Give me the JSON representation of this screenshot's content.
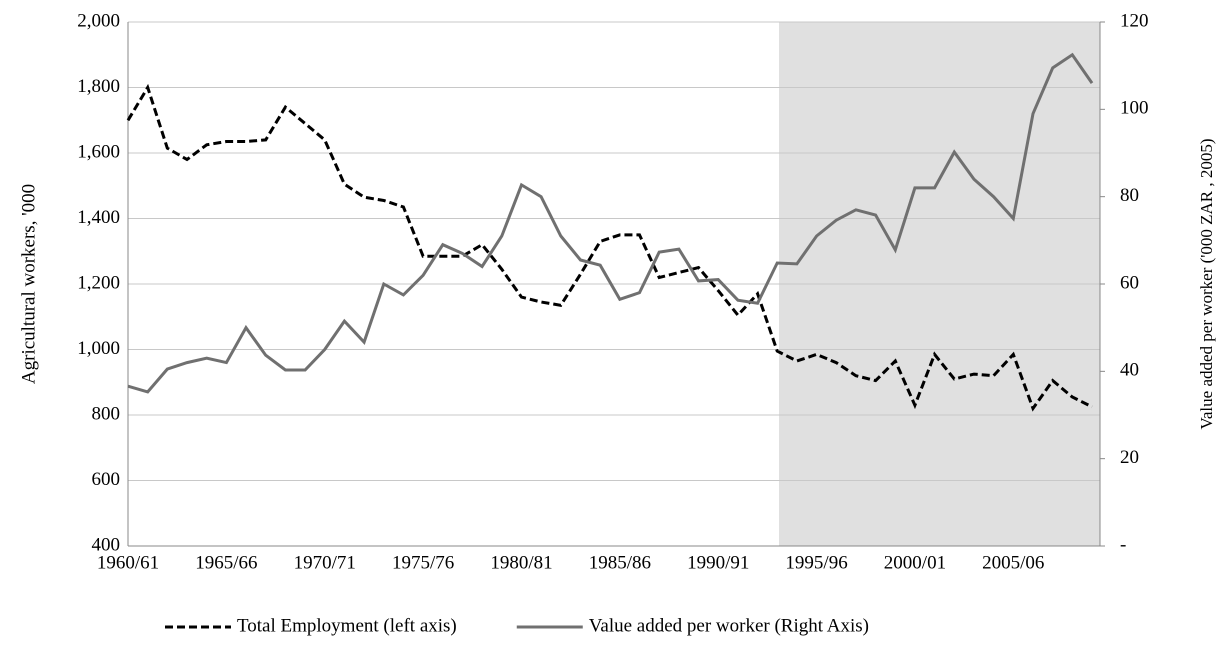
{
  "chart_data": {
    "type": "line",
    "y_label": "Agricultural workers, '000",
    "y2_label": "Value added per worker ('000 ZAR , 2005)",
    "categories": [
      "1960/61",
      null,
      null,
      null,
      null,
      "1965/66",
      null,
      null,
      null,
      null,
      "1970/71",
      null,
      null,
      null,
      null,
      "1975/76",
      null,
      null,
      null,
      null,
      "1980/81",
      null,
      null,
      null,
      null,
      "1985/86",
      null,
      null,
      null,
      null,
      "1990/91",
      null,
      null,
      null,
      null,
      "1995/96",
      null,
      null,
      null,
      null,
      "2000/01",
      null,
      null,
      null,
      null,
      "2005/06",
      null,
      null,
      null,
      null
    ],
    "series": [
      {
        "name": "Total Employment (left axis)",
        "color": "#000000",
        "line_style": "dashed",
        "values": [
          1700,
          1800,
          1615,
          1580,
          1625,
          1635,
          1635,
          1640,
          1740,
          1690,
          1640,
          1505,
          1465,
          1455,
          1435,
          1285,
          1285,
          1285,
          1320,
          1245,
          1160,
          1145,
          1135,
          1230,
          1330,
          1350,
          1350,
          1220,
          1235,
          1250,
          1180,
          1105,
          1170,
          995,
          965,
          985,
          960,
          920,
          905,
          965,
          830,
          985,
          910,
          925,
          920,
          985,
          820,
          905,
          855,
          825
        ]
      },
      {
        "name": "Value added per worker (Right Axis)",
        "color": "#707070",
        "line_style": "solid",
        "axis": "y2",
        "values": [
          36.6,
          35.3,
          40.5,
          42,
          43,
          42,
          50,
          43.7,
          40.3,
          40.3,
          45,
          51.5,
          46.7,
          60,
          57.5,
          62,
          69,
          67,
          64,
          71,
          82.7,
          80,
          71,
          65.5,
          64.3,
          56.5,
          58,
          67.3,
          68,
          60.7,
          61,
          56.3,
          55.6,
          64.8,
          64.6,
          71,
          74.6,
          77,
          75.8,
          67.8,
          82,
          82,
          90.2,
          84,
          80,
          75,
          99,
          109.5,
          112.5,
          106
        ]
      }
    ],
    "ylim": [
      400,
      2000
    ],
    "yticks": [
      400,
      600,
      800,
      {
        "value": 1000,
        "label": "1,000"
      },
      {
        "value": 1200,
        "label": "1,200"
      },
      {
        "value": 1400,
        "label": "1,400"
      },
      {
        "value": 1600,
        "label": "1,600"
      },
      {
        "value": 1800,
        "label": "1,800"
      },
      {
        "value": 2000,
        "label": "2,000"
      }
    ],
    "y2lim": [
      0,
      120
    ],
    "y2ticks": [
      {
        "value": 0,
        "label": "-"
      },
      20,
      40,
      60,
      80,
      100,
      120
    ],
    "grid": true,
    "legend": "bottom"
  }
}
